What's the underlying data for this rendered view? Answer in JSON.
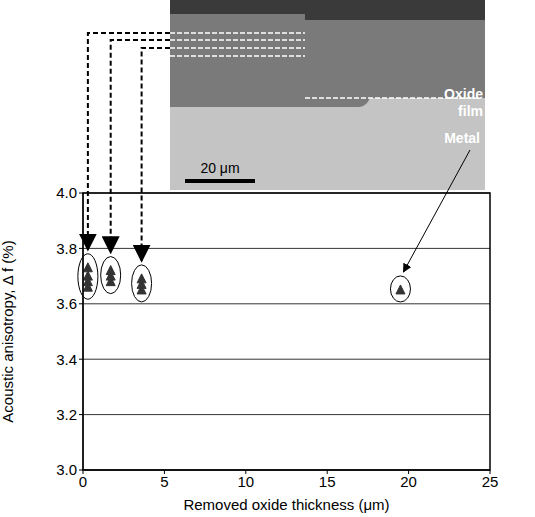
{
  "chart_data": {
    "type": "scatter",
    "x_label": "Removed oxide thickness (μm)",
    "y_label": "Acoustic anisotropy, Δ f (%)",
    "x": [
      0.3,
      0.3,
      0.3,
      0.3,
      1.7,
      1.7,
      1.7,
      3.6,
      3.6,
      3.6,
      19.5
    ],
    "values": [
      3.66,
      3.68,
      3.7,
      3.73,
      3.68,
      3.7,
      3.72,
      3.65,
      3.67,
      3.69,
      3.65
    ],
    "color": "#333333",
    "marker": "triangle",
    "xlim": [
      0,
      25
    ],
    "xticks": [
      0,
      5,
      10,
      15,
      20,
      25
    ],
    "ylim": [
      3,
      4
    ],
    "yticks": [
      {
        "value": 3,
        "label": "3.0"
      },
      {
        "value": 3.2,
        "label": "3.2"
      },
      {
        "value": 3.4,
        "label": "3.4"
      },
      {
        "value": 3.6,
        "label": "3.6"
      },
      {
        "value": 3.8,
        "label": "3.8"
      },
      {
        "value": 4,
        "label": "4.0"
      }
    ],
    "grid": true,
    "annotations": [
      "Oxide film",
      "Metal",
      "20 μm"
    ]
  }
}
